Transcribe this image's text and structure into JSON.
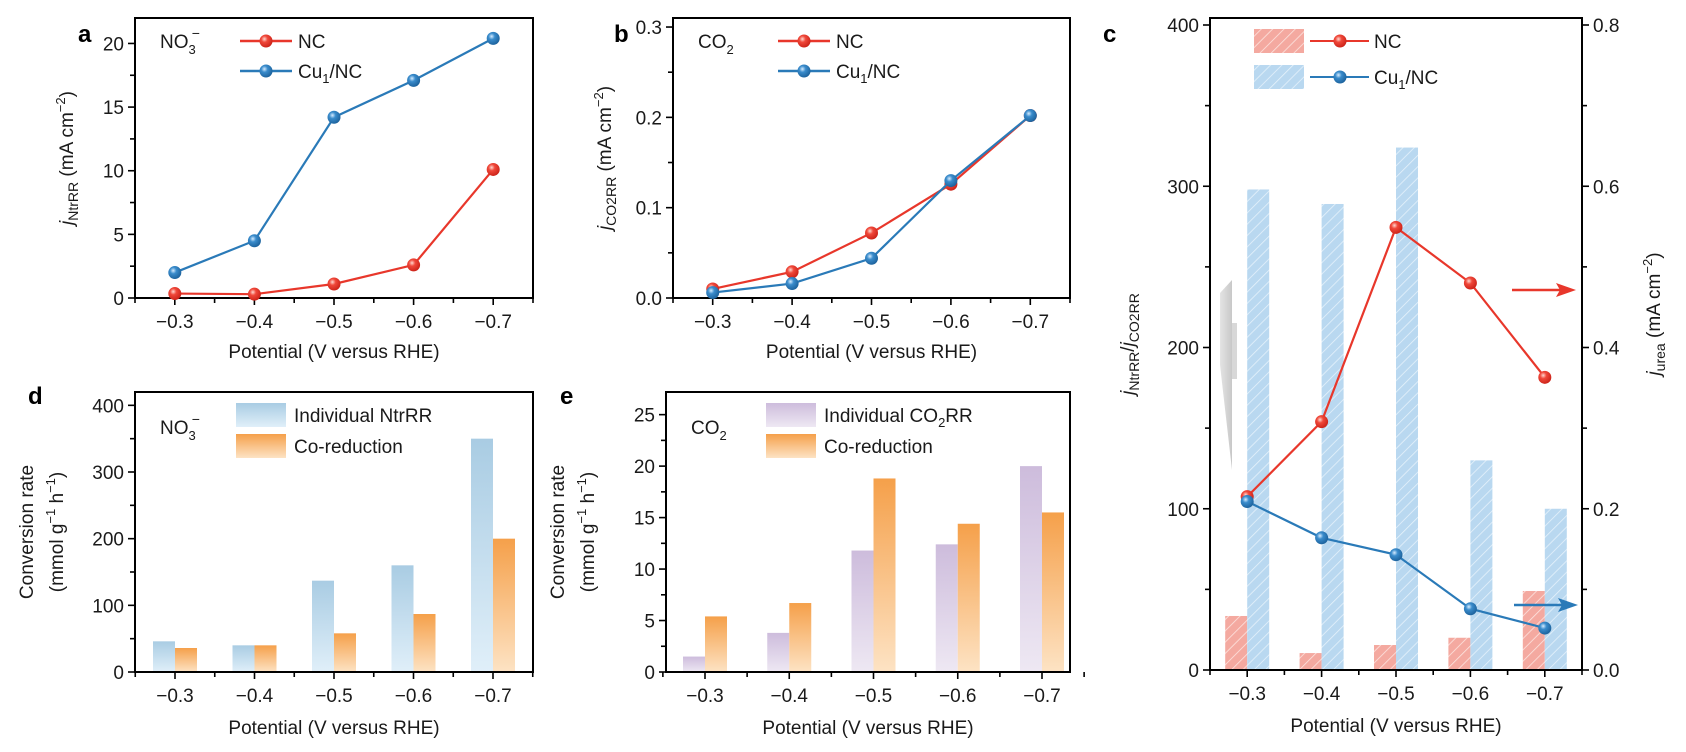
{
  "chart_data": [
    {
      "id": "a",
      "panel_label": "a",
      "type": "line",
      "annotation": {
        "base": "NO",
        "sub": "3",
        "sup": "−"
      },
      "xlabel": "Potential (V versus RHE)",
      "ylabel": {
        "italic": "j",
        "sub": "NtrRR",
        "rest": " (mA cm",
        "sup": "−2",
        "close": ")"
      },
      "x": [
        -0.3,
        -0.4,
        -0.5,
        -0.6,
        -0.7
      ],
      "xtick_labels": [
        "−0.3",
        "−0.4",
        "−0.5",
        "−0.6",
        "−0.7"
      ],
      "xlim": [
        -0.25,
        -0.75
      ],
      "ylim": [
        0,
        22
      ],
      "yticks": [
        0,
        5,
        10,
        15,
        20
      ],
      "ytick_labels": [
        "0",
        "5",
        "10",
        "15",
        "20"
      ],
      "series": [
        {
          "name": "NC",
          "color": "#e8372b",
          "values": [
            0.35,
            0.3,
            1.1,
            2.6,
            10.1
          ]
        },
        {
          "name": "Cu1/NC",
          "label_base": "Cu",
          "label_sub": "1",
          "label_rest": "/NC",
          "color": "#2a7ab8",
          "values": [
            2.0,
            4.5,
            14.2,
            17.1,
            20.4
          ]
        }
      ],
      "legend": "top-center"
    },
    {
      "id": "b",
      "panel_label": "b",
      "type": "line",
      "annotation": {
        "base": "CO",
        "sub": "2",
        "sup": ""
      },
      "xlabel": "Potential (V versus RHE)",
      "ylabel": {
        "italic": "j",
        "sub": "CO2RR",
        "rest": " (mA cm",
        "sup": "−2",
        "close": ")"
      },
      "x": [
        -0.3,
        -0.4,
        -0.5,
        -0.6,
        -0.7
      ],
      "xtick_labels": [
        "−0.3",
        "−0.4",
        "−0.5",
        "−0.6",
        "−0.7"
      ],
      "xlim": [
        -0.25,
        -0.75
      ],
      "ylim": [
        0,
        0.31
      ],
      "yticks": [
        0,
        0.1,
        0.2,
        0.3
      ],
      "ytick_labels": [
        "0.0",
        "0.1",
        "0.2",
        "0.3"
      ],
      "series": [
        {
          "name": "NC",
          "color": "#e8372b",
          "values": [
            0.01,
            0.029,
            0.072,
            0.126,
            0.202
          ]
        },
        {
          "name": "Cu1/NC",
          "label_base": "Cu",
          "label_sub": "1",
          "label_rest": "/NC",
          "color": "#2a7ab8",
          "values": [
            0.006,
            0.016,
            0.044,
            0.13,
            0.202
          ]
        }
      ],
      "legend": "top-center"
    },
    {
      "id": "c",
      "panel_label": "c",
      "type": "bar+line",
      "xlabel": "Potential (V versus RHE)",
      "ylabel_left": {
        "italic1": "j",
        "sub1": "NtrRR",
        "slash": "/",
        "italic2": "j",
        "sub2": "CO2RR"
      },
      "ylabel_right": {
        "italic": "j",
        "sub": "urea",
        "rest": " (mA cm",
        "sup": "−2",
        "close": ")"
      },
      "x": [
        -0.3,
        -0.4,
        -0.5,
        -0.6,
        -0.7
      ],
      "xtick_labels": [
        "−0.3",
        "−0.4",
        "−0.5",
        "−0.6",
        "−0.7"
      ],
      "xlim": [
        -0.25,
        -0.75
      ],
      "ylim_left": [
        0,
        400
      ],
      "yticks_left": [
        0,
        100,
        200,
        300,
        400
      ],
      "ytick_labels_left": [
        "0",
        "100",
        "200",
        "300",
        "400"
      ],
      "ylim_right": [
        0,
        0.8
      ],
      "yticks_right": [
        0,
        0.2,
        0.4,
        0.6,
        0.8
      ],
      "ytick_labels_right": [
        "0.0",
        "0.2",
        "0.4",
        "0.6",
        "0.8"
      ],
      "bars_left_axis": [
        {
          "name": "NC",
          "color": "#f4a9a0",
          "values": [
            33.5,
            10.5,
            15.5,
            20,
            49
          ]
        },
        {
          "name": "Cu1/NC",
          "color": "#b9d8f0",
          "values": [
            298,
            289,
            324,
            130,
            100
          ]
        }
      ],
      "lines_right_axis": [
        {
          "name": "NC",
          "color": "#e8372b",
          "values": [
            0.215,
            0.308,
            0.549,
            0.48,
            0.363
          ]
        },
        {
          "name": "Cu1/NC",
          "color": "#2a7ab8",
          "values": [
            0.209,
            0.164,
            0.143,
            0.076,
            0.052
          ]
        }
      ],
      "legend_labels": [
        {
          "base": "NC",
          "sub": "",
          "rest": ""
        },
        {
          "base": "Cu",
          "sub": "1",
          "rest": "/NC"
        }
      ],
      "legend": "top-left",
      "annotations": [
        "gray arrow pointing left (bars → left axis)",
        "red arrow pointing right (NC line → right axis)",
        "blue arrow pointing right (Cu1/NC line → right axis)"
      ]
    },
    {
      "id": "d",
      "panel_label": "d",
      "type": "bar",
      "annotation": {
        "base": "NO",
        "sub": "3",
        "sup": "−"
      },
      "xlabel": "Potential (V versus RHE)",
      "ylabel_line1": "Conversion rate",
      "ylabel_line2": {
        "pre": "(mmol g",
        "sup1": "−1",
        "mid": " h",
        "sup2": "−1",
        "close": ")"
      },
      "categories": [
        "−0.3",
        "−0.4",
        "−0.5",
        "−0.6",
        "−0.7"
      ],
      "ylim": [
        0,
        420
      ],
      "yticks": [
        0,
        100,
        200,
        300,
        400
      ],
      "ytick_labels": [
        "0",
        "100",
        "200",
        "300",
        "400"
      ],
      "series": [
        {
          "name": "Individual NtrRR",
          "color_top": "#a9cce3",
          "color_bottom": "#ddeef8",
          "values": [
            46,
            40,
            137,
            160,
            350
          ]
        },
        {
          "name": "Co-reduction",
          "color_top": "#f5a04a",
          "color_bottom": "#fde3c4",
          "values": [
            36,
            40,
            58,
            87,
            200
          ]
        }
      ],
      "legend": "top-center"
    },
    {
      "id": "e",
      "panel_label": "e",
      "type": "bar",
      "annotation": {
        "base": "CO",
        "sub": "2",
        "sup": ""
      },
      "xlabel": "Potential (V versus RHE)",
      "ylabel_line1": "Conversion rate",
      "ylabel_line2": {
        "pre": "(mmol g",
        "sup1": "−1",
        "mid": " h",
        "sup2": "−1",
        "close": ")"
      },
      "categories": [
        "−0.3",
        "−0.4",
        "−0.5",
        "−0.6",
        "−0.7"
      ],
      "ylim": [
        0,
        27.2
      ],
      "yticks": [
        0,
        5,
        10,
        15,
        20,
        25
      ],
      "ytick_labels": [
        "0",
        "5",
        "10",
        "15",
        "20",
        "25"
      ],
      "series": [
        {
          "name": "Individual CO2RR",
          "label_base": "Individual CO",
          "label_sub": "2",
          "label_rest": "RR",
          "color_top": "#cdbcdc",
          "color_bottom": "#ece5f2",
          "values": [
            1.5,
            3.8,
            11.8,
            12.4,
            20.0
          ]
        },
        {
          "name": "Co-reduction",
          "color_top": "#f5a04a",
          "color_bottom": "#fde3c4",
          "values": [
            5.4,
            6.7,
            18.8,
            14.4,
            15.5
          ]
        }
      ],
      "legend": "top-center"
    }
  ]
}
